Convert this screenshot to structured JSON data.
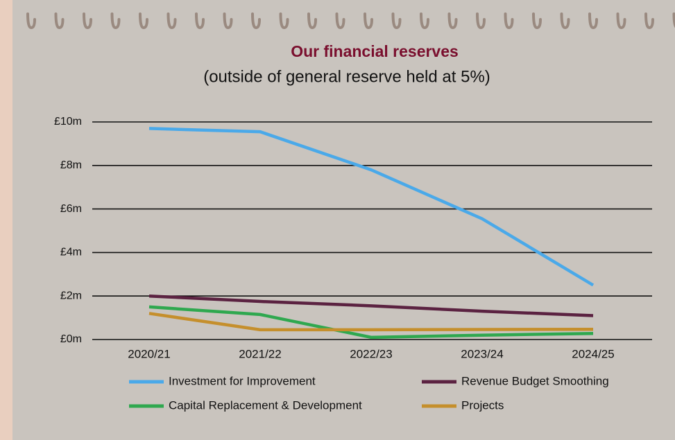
{
  "chart_data": {
    "type": "line",
    "title": "Our financial reserves",
    "subtitle": "(outside of general reserve held at 5%)",
    "categories": [
      "2020/21",
      "2021/22",
      "2022/23",
      "2023/24",
      "2024/25"
    ],
    "series": [
      {
        "name": "Investment for Improvement",
        "color": "#4aa9e9",
        "values": [
          9.7,
          9.55,
          7.8,
          5.55,
          2.5
        ]
      },
      {
        "name": "Revenue Budget Smoothing",
        "color": "#5b2241",
        "values": [
          2.0,
          1.75,
          1.55,
          1.3,
          1.1
        ]
      },
      {
        "name": "Capital Replacement & Development",
        "color": "#2fa84f",
        "values": [
          1.5,
          1.15,
          0.1,
          0.2,
          0.28
        ]
      },
      {
        "name": "Projects",
        "color": "#c58f2c",
        "values": [
          1.2,
          0.45,
          0.45,
          0.46,
          0.47
        ]
      }
    ],
    "ylim": [
      0,
      10
    ],
    "yticks": [
      {
        "value": 0,
        "label": "£0m"
      },
      {
        "value": 2,
        "label": "£2m"
      },
      {
        "value": 4,
        "label": "£4m"
      },
      {
        "value": 6,
        "label": "£6m"
      },
      {
        "value": 8,
        "label": "£8m"
      },
      {
        "value": 10,
        "label": "£10m"
      }
    ],
    "grid": true
  }
}
